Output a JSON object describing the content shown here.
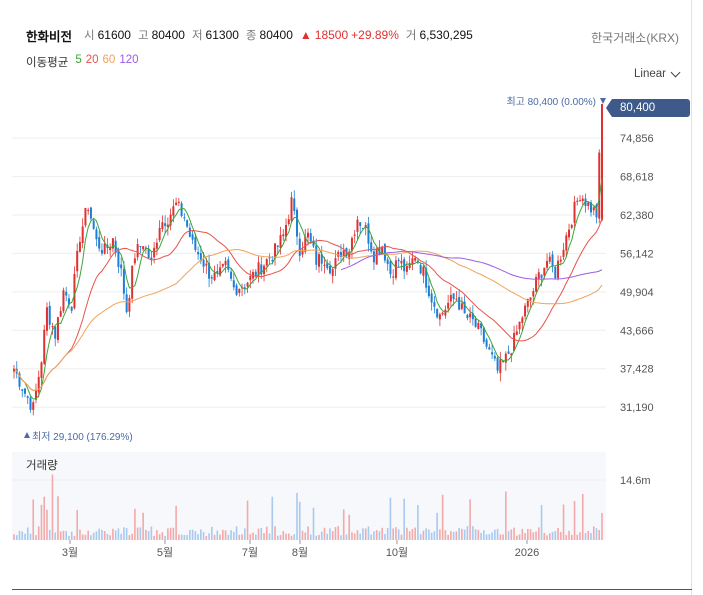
{
  "header": {
    "name": "한화비전",
    "open_label": "시",
    "open": "61600",
    "high_label": "고",
    "high": "80400",
    "low_label": "저",
    "low": "61300",
    "close_label": "종",
    "close": "80400",
    "change_arrow": "▲",
    "change": "18500",
    "change_pct": "+29.89%",
    "volume_label": "거",
    "volume": "6,530,295",
    "exchange": "한국거래소(KRX)"
  },
  "ma_legend": {
    "title": "이동평균",
    "items": [
      {
        "label": "5",
        "color": "#3aa53a"
      },
      {
        "label": "20",
        "color": "#e8534a"
      },
      {
        "label": "60",
        "color": "#f0a35a"
      },
      {
        "label": "120",
        "color": "#9b5de5"
      }
    ]
  },
  "scale_selector": {
    "label": "Linear"
  },
  "annotations": {
    "high": "최고 80,400 (0.00%)",
    "low": "최저 29,100 (176.29%)",
    "current_price": "80,400"
  },
  "volume_panel": {
    "title": "거래량",
    "axis_label": "14.6m"
  },
  "colors": {
    "up": "#e03131",
    "down": "#1c7ed6",
    "tag": "#3d5a8a"
  },
  "chart_data": {
    "type": "candlestick",
    "y_ticks": [
      "74,856",
      "68,618",
      "62,380",
      "56,142",
      "49,904",
      "43,666",
      "37,428",
      "31,190"
    ],
    "x_ticks": [
      "3월",
      "5월",
      "7월",
      "8월",
      "10월",
      "2026"
    ],
    "ylim": [
      29100,
      80400
    ],
    "grid": true,
    "close_series_approx": [
      [
        0,
        37500
      ],
      [
        4,
        33500
      ],
      [
        7,
        31000
      ],
      [
        10,
        39000
      ],
      [
        12,
        47000
      ],
      [
        15,
        43000
      ],
      [
        18,
        50000
      ],
      [
        21,
        48000
      ],
      [
        24,
        59000
      ],
      [
        27,
        64000
      ],
      [
        30,
        58000
      ],
      [
        33,
        56500
      ],
      [
        36,
        58500
      ],
      [
        39,
        53000
      ],
      [
        41,
        47000
      ],
      [
        44,
        56000
      ],
      [
        47,
        58000
      ],
      [
        50,
        54500
      ],
      [
        53,
        61000
      ],
      [
        56,
        62000
      ],
      [
        59,
        64000
      ],
      [
        62,
        62000
      ],
      [
        65,
        57500
      ],
      [
        68,
        55500
      ],
      [
        71,
        53000
      ],
      [
        74,
        52000
      ],
      [
        77,
        54000
      ],
      [
        80,
        50500
      ],
      [
        83,
        51000
      ],
      [
        86,
        52000
      ],
      [
        89,
        53500
      ],
      [
        92,
        55000
      ],
      [
        95,
        56500
      ],
      [
        98,
        59000
      ],
      [
        101,
        64500
      ],
      [
        104,
        57000
      ],
      [
        107,
        59000
      ],
      [
        110,
        55000
      ],
      [
        113,
        55500
      ],
      [
        116,
        53500
      ],
      [
        119,
        56500
      ],
      [
        122,
        57000
      ],
      [
        125,
        62000
      ],
      [
        128,
        60000
      ],
      [
        131,
        56000
      ],
      [
        134,
        57500
      ],
      [
        137,
        53000
      ],
      [
        140,
        55000
      ],
      [
        143,
        53000
      ],
      [
        146,
        56000
      ],
      [
        149,
        53000
      ],
      [
        152,
        49000
      ],
      [
        155,
        46000
      ],
      [
        158,
        48000
      ],
      [
        161,
        49000
      ],
      [
        164,
        46000
      ],
      [
        167,
        45000
      ],
      [
        170,
        43000
      ],
      [
        173,
        40000
      ],
      [
        176,
        37000
      ],
      [
        179,
        39000
      ],
      [
        182,
        42000
      ],
      [
        185,
        46000
      ],
      [
        188,
        49000
      ],
      [
        191,
        52500
      ],
      [
        194,
        55000
      ],
      [
        197,
        53000
      ],
      [
        200,
        57500
      ],
      [
        203,
        62000
      ],
      [
        206,
        66000
      ],
      [
        209,
        64000
      ],
      [
        212,
        62500
      ],
      [
        214,
        80400
      ]
    ]
  }
}
